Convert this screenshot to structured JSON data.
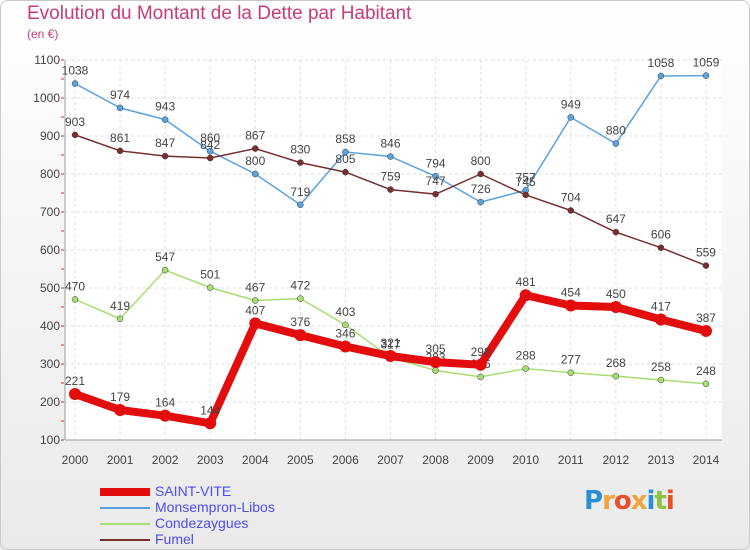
{
  "header": {
    "title": "Evolution du Montant de la Dette par Habitant",
    "subtitle": "(en €)"
  },
  "logo": {
    "letters": [
      "P",
      "r",
      "o",
      "x",
      "i",
      "t",
      "i"
    ],
    "colors": [
      "#2b8fd6",
      "#f0a43b",
      "#e84f2a",
      "#f0a43b",
      "#2b8fd6",
      "#8cc63f",
      "#e84f2a"
    ]
  },
  "chart_data": {
    "type": "line",
    "categories": [
      "2000",
      "2001",
      "2002",
      "2003",
      "2004",
      "2005",
      "2006",
      "2007",
      "2008",
      "2009",
      "2010",
      "2011",
      "2012",
      "2013",
      "2014"
    ],
    "y_ticks": [
      "100",
      "200",
      "300",
      "400",
      "500",
      "600",
      "700",
      "800",
      "900",
      "1000",
      "1100"
    ],
    "ylim": [
      100,
      1100
    ],
    "grid": true,
    "legend_position": "bottom-left",
    "series": [
      {
        "name": "SAINT-VITE",
        "color": "#e30d0d",
        "bold": true,
        "values": [
          221,
          179,
          164,
          144,
          407,
          376,
          346,
          321,
          305,
          298,
          481,
          454,
          450,
          417,
          387
        ],
        "labels": [
          "221",
          "179",
          "164",
          "144",
          "407",
          "376",
          "346",
          "321",
          "305",
          "298",
          "481",
          "454",
          "450",
          "417",
          "387"
        ]
      },
      {
        "name": "Monsempron-Libos",
        "color": "#5aa3e0",
        "bold": false,
        "values": [
          1038,
          974,
          943,
          860,
          800,
          719,
          858,
          846,
          794,
          726,
          757,
          949,
          880,
          1058,
          1059
        ],
        "labels": [
          "1038",
          "974",
          "943",
          "860",
          "800",
          "719",
          "858",
          "846",
          "794",
          "726",
          "757",
          "949",
          "880",
          "1058",
          "1059"
        ]
      },
      {
        "name": "Condezaygues",
        "color": "#a6de71",
        "bold": false,
        "values": [
          470,
          419,
          547,
          501,
          467,
          472,
          403,
          317,
          283,
          266,
          288,
          277,
          268,
          258,
          248
        ],
        "labels": [
          "470",
          "419",
          "547",
          "501",
          "467",
          "472",
          "403",
          "317",
          "283",
          "266",
          "288",
          "277",
          "268",
          "258",
          "248"
        ]
      },
      {
        "name": "Fumel",
        "color": "#7a2e2e",
        "bold": false,
        "values": [
          903,
          861,
          847,
          842,
          867,
          830,
          805,
          759,
          747,
          800,
          745,
          704,
          647,
          606,
          559
        ],
        "labels": [
          "903",
          "861",
          "847",
          "842",
          "867",
          "830",
          "805",
          "759",
          "747",
          "800",
          "745",
          "704",
          "647",
          "606",
          "559"
        ]
      }
    ]
  }
}
